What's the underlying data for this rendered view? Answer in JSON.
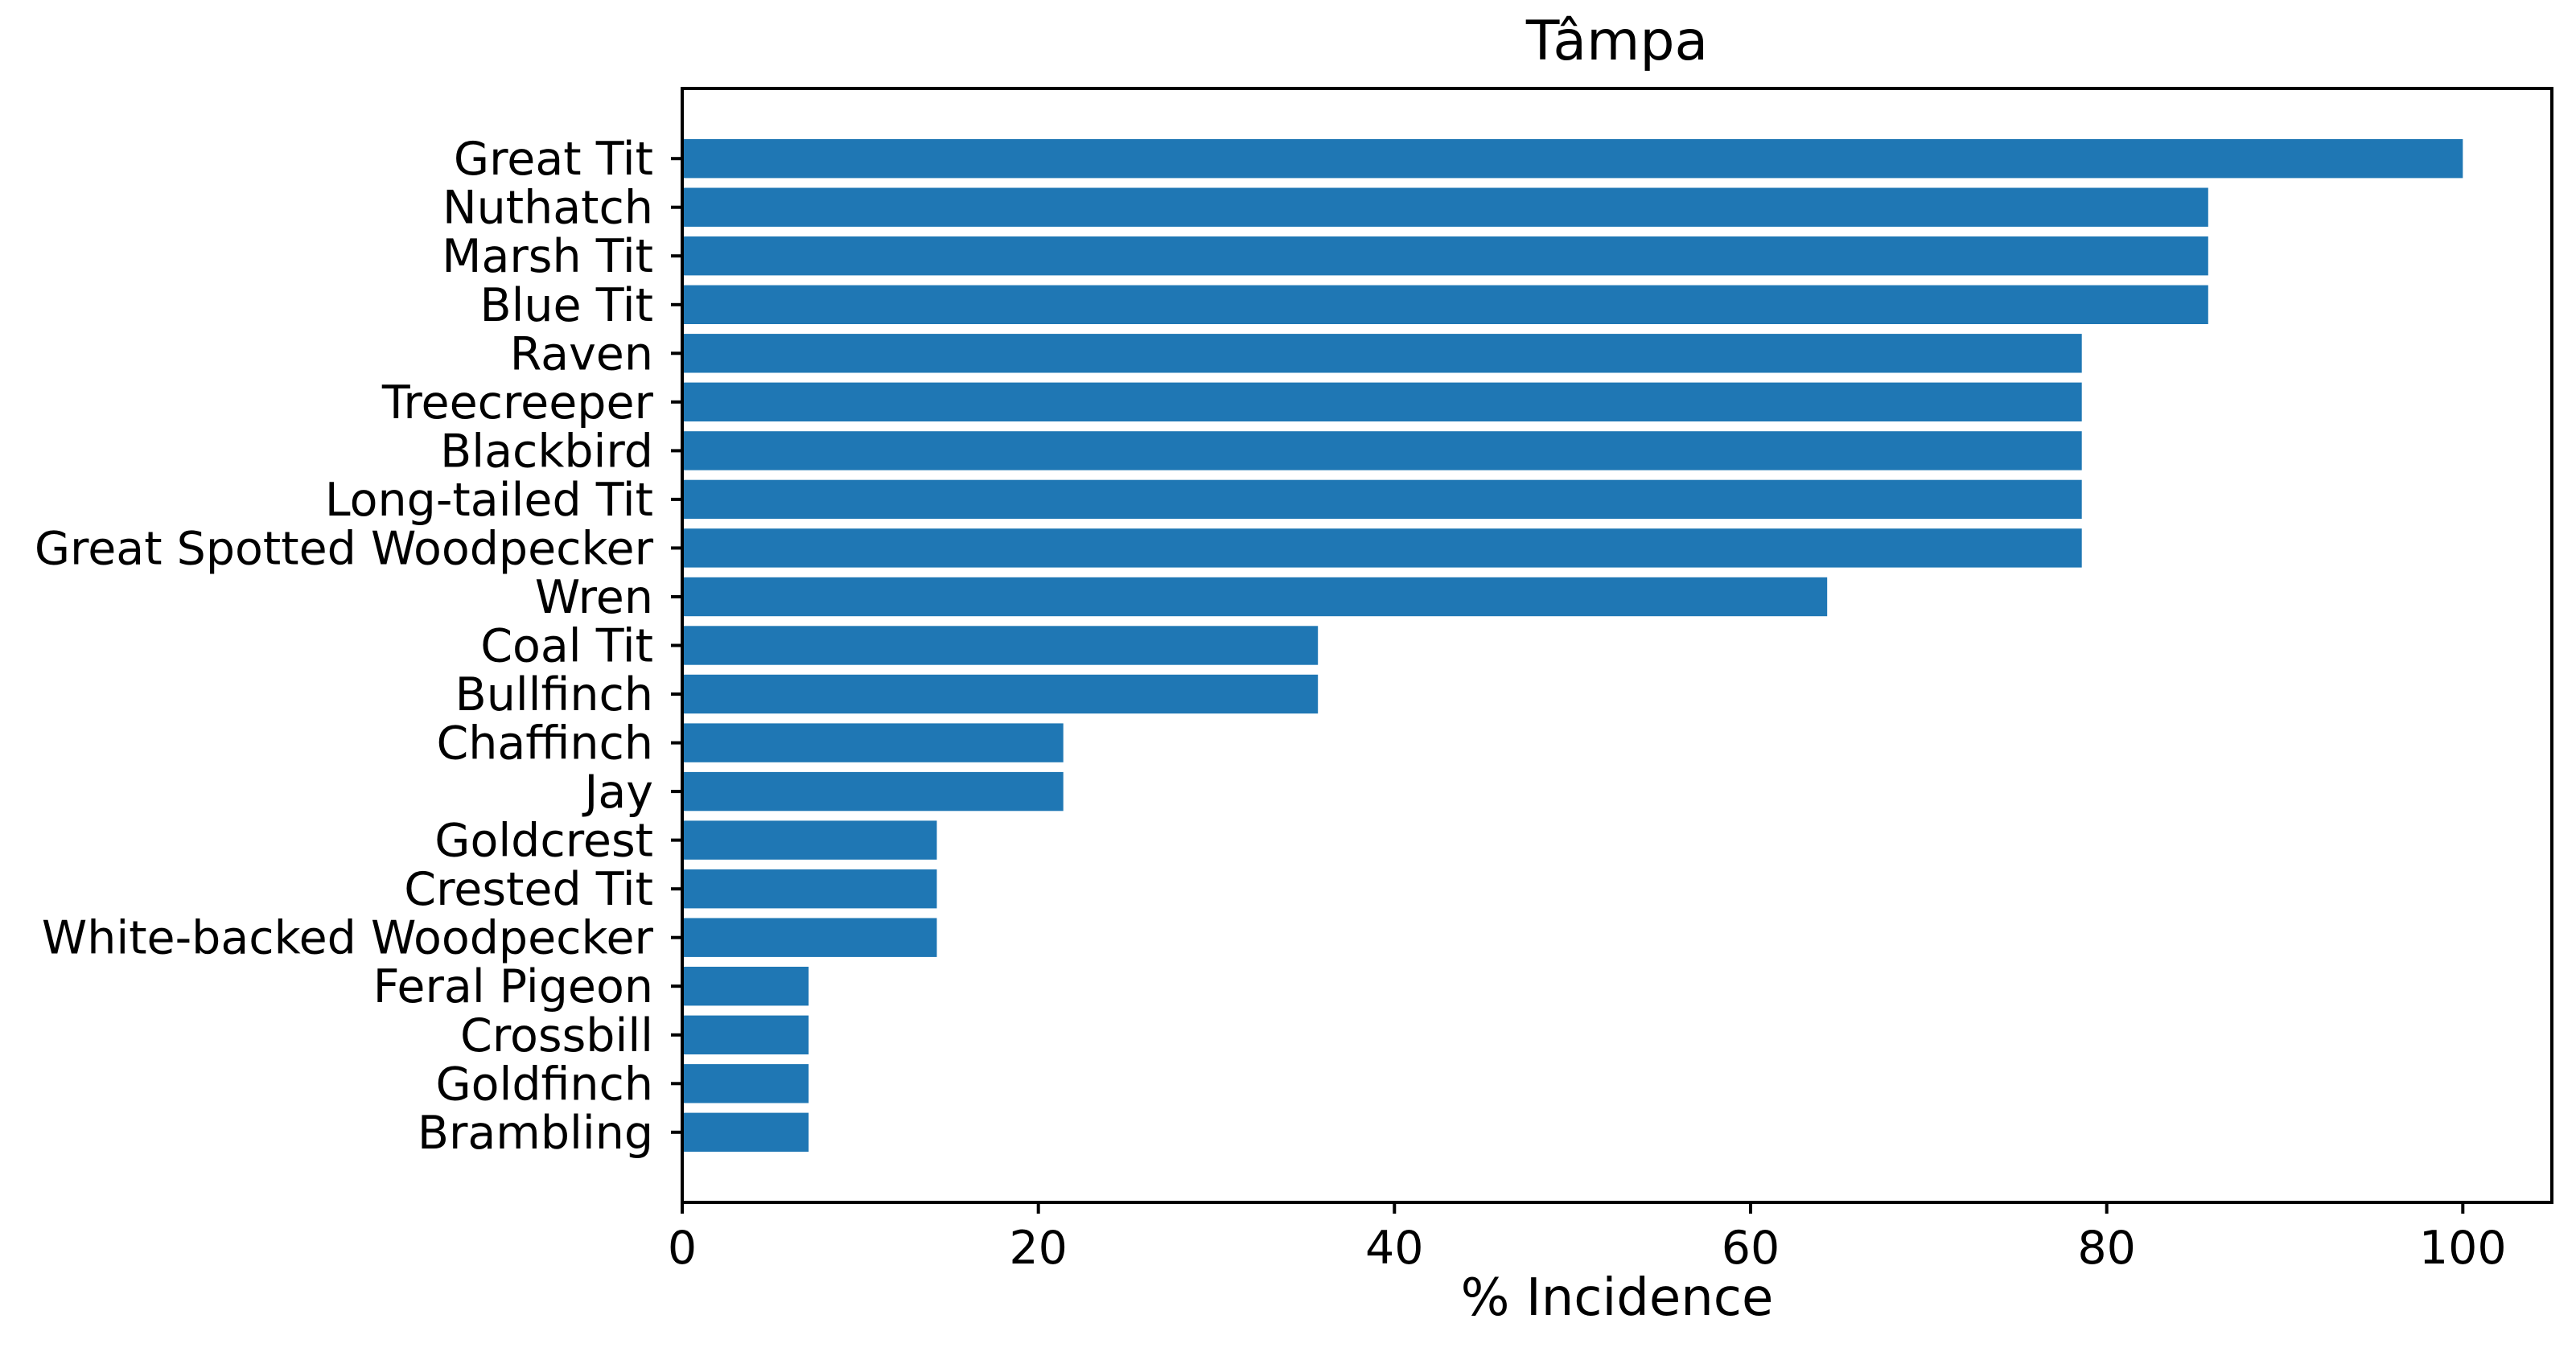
{
  "chart_data": {
    "type": "bar",
    "orientation": "horizontal",
    "title": "Tâmpa",
    "xlabel": "% Incidence",
    "ylabel": "",
    "categories": [
      "Great Tit",
      "Nuthatch",
      "Marsh Tit",
      "Blue Tit",
      "Raven",
      "Treecreeper",
      "Blackbird",
      "Long-tailed Tit",
      "Great Spotted Woodpecker",
      "Wren",
      "Coal Tit",
      "Bullfinch",
      "Chaffinch",
      "Jay",
      "Goldcrest",
      "Crested Tit",
      "White-backed Woodpecker",
      "Feral Pigeon",
      "Crossbill",
      "Goldfinch",
      "Brambling"
    ],
    "values": [
      100,
      85.7,
      85.7,
      85.7,
      78.6,
      78.6,
      78.6,
      78.6,
      78.6,
      64.3,
      35.7,
      35.7,
      21.4,
      21.4,
      14.3,
      14.3,
      14.3,
      7.1,
      7.1,
      7.1,
      7.1
    ],
    "xlim": [
      0,
      105
    ],
    "xticks": [
      0,
      20,
      40,
      60,
      80,
      100
    ],
    "bar_color": "#1f77b4",
    "axis_color": "#000000",
    "grid": false,
    "legend": null
  }
}
